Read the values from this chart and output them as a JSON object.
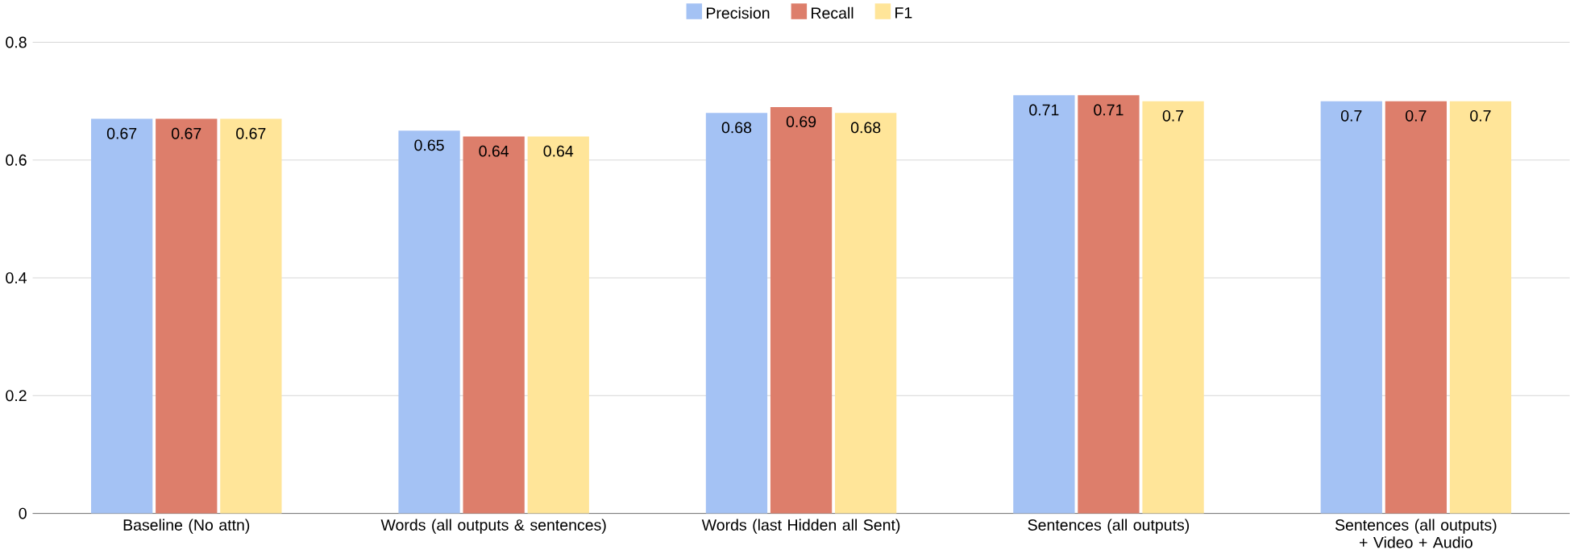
{
  "chart_data": {
    "type": "bar",
    "categories": [
      "Baseline (No attn)",
      "Words (all outputs & sentences)",
      "Words (last Hidden all Sent)",
      "Sentences (all outputs)",
      "Sentences (all outputs) + Video + Audio"
    ],
    "series": [
      {
        "name": "Precision",
        "color": "#a4c2f4",
        "values": [
          0.67,
          0.65,
          0.68,
          0.71,
          0.7
        ]
      },
      {
        "name": "Recall",
        "color": "#dd7e6b",
        "values": [
          0.67,
          0.64,
          0.69,
          0.71,
          0.7
        ]
      },
      {
        "name": "F1",
        "color": "#ffe599",
        "values": [
          0.67,
          0.64,
          0.68,
          0.7,
          0.7
        ]
      }
    ],
    "ylim": [
      0,
      0.8
    ],
    "yticks": [
      0,
      0.2,
      0.4,
      0.6,
      0.8
    ],
    "grid": "y",
    "legend": "top",
    "data_labels": true
  }
}
